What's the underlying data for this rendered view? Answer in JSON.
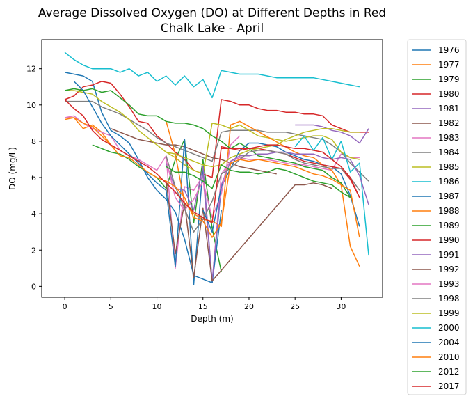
{
  "chart_data": {
    "type": "line",
    "title_line1": "Average Dissolved Oxygen (DO) at Different Depths in Red",
    "title_line2": "Chalk Lake - April",
    "xlabel": "Depth (m)",
    "ylabel": "DO (mg/L)",
    "xlim": [
      -2.5,
      34.5
    ],
    "ylim": [
      -0.6,
      13.6
    ],
    "xticks": [
      0,
      5,
      10,
      15,
      20,
      25,
      30
    ],
    "yticks": [
      0,
      2,
      4,
      6,
      8,
      10,
      12
    ],
    "grid": false,
    "legend_placement": "outside-right",
    "series": [
      {
        "name": "1976",
        "color": "#1f77b4",
        "x": [
          0,
          1,
          2,
          3,
          4,
          5,
          6,
          7,
          8,
          9,
          10,
          11,
          12,
          13,
          14,
          15,
          16,
          17,
          18,
          19,
          20,
          21,
          22,
          23,
          24,
          25,
          26,
          27,
          28,
          29,
          30,
          31,
          32
        ],
        "y": [
          11.8,
          11.7,
          11.6,
          11.3,
          9.6,
          8.6,
          8.3,
          7.9,
          7.0,
          6.0,
          5.3,
          4.8,
          4.1,
          2.6,
          0.6,
          0.4,
          0.2,
          5.5,
          6.5,
          7.5,
          7.9,
          7.9,
          7.8,
          7.7,
          7.4,
          7.2,
          7.0,
          6.9,
          6.7,
          6.6,
          6.2,
          5.0,
          3.3
        ]
      },
      {
        "name": "1977",
        "color": "#ff7f0e",
        "x": [
          0,
          1,
          2,
          3,
          4,
          5,
          6,
          7
        ],
        "y": [
          9.3,
          9.3,
          8.7,
          8.9,
          8.5,
          7.8,
          7.5,
          7.2
        ]
      },
      {
        "name": "1979",
        "color": "#2ca02c",
        "x": [
          3,
          4,
          5,
          6,
          7,
          8,
          9,
          10,
          11,
          12,
          13,
          14,
          15,
          16,
          17
        ],
        "y": [
          7.8,
          7.6,
          7.4,
          7.3,
          7.0,
          6.6,
          6.3,
          6.0,
          5.4,
          7.0,
          8.1,
          3.5,
          7.0,
          3.2,
          0.8
        ]
      },
      {
        "name": "1980",
        "color": "#d62728",
        "x": [
          0,
          1,
          2,
          3,
          4,
          5,
          6,
          7,
          8,
          9,
          10,
          11,
          12,
          13,
          14,
          15,
          16,
          17,
          18,
          19,
          20,
          21,
          22,
          23,
          24,
          25,
          26,
          27,
          28,
          29,
          30,
          31,
          32,
          33
        ],
        "y": [
          10.3,
          10.5,
          11.0,
          11.1,
          11.3,
          11.2,
          10.6,
          9.9,
          9.1,
          9.0,
          8.3,
          7.9,
          7.4,
          7.0,
          6.4,
          6.2,
          6.0,
          10.3,
          10.2,
          10.0,
          10.0,
          9.8,
          9.7,
          9.7,
          9.6,
          9.6,
          9.5,
          9.5,
          9.4,
          8.9,
          8.7,
          8.5,
          8.5,
          8.5
        ]
      },
      {
        "name": "1981",
        "color": "#9467bd",
        "x": [
          25,
          26,
          27,
          28,
          29,
          30,
          31,
          32,
          33
        ],
        "y": [
          8.9,
          8.9,
          8.9,
          8.8,
          8.6,
          8.5,
          8.3,
          7.9,
          8.7
        ]
      },
      {
        "name": "1982",
        "color": "#8c564b",
        "x": [
          5,
          6,
          7,
          8,
          9,
          10,
          11,
          12,
          13,
          14,
          15,
          16,
          17,
          18,
          19,
          20,
          21,
          22,
          23
        ],
        "y": [
          8.7,
          8.5,
          8.3,
          8.1,
          8.0,
          7.9,
          7.8,
          7.8,
          7.7,
          7.5,
          7.3,
          7.1,
          7.0,
          6.8,
          6.6,
          6.5,
          6.4,
          6.3,
          6.2
        ]
      },
      {
        "name": "1983",
        "color": "#e377c2",
        "x": [
          0,
          1,
          2,
          3,
          4,
          5,
          6,
          7,
          8,
          9,
          10,
          11,
          12,
          13,
          14,
          15,
          16,
          17,
          18,
          19,
          20,
          21,
          22,
          23,
          24,
          25,
          26,
          27,
          28,
          29,
          30,
          31,
          32
        ],
        "y": [
          9.3,
          9.4,
          9.0,
          8.7,
          8.5,
          8.3,
          7.5,
          7.2,
          7.0,
          6.7,
          6.4,
          7.2,
          1.0,
          5.5,
          5.3,
          6.1,
          0.2,
          6.2,
          6.9,
          7.1,
          7.0,
          7.0,
          7.0,
          6.9,
          6.8,
          6.7,
          6.7,
          6.6,
          6.5,
          6.4,
          7.3,
          7.1,
          7.1
        ]
      },
      {
        "name": "1984",
        "color": "#7f7f7f",
        "x": [
          0,
          1,
          2,
          3,
          4,
          5,
          6,
          7,
          8,
          9,
          10,
          11,
          12,
          13,
          14,
          15,
          16,
          17,
          18,
          19,
          20,
          21,
          22,
          23,
          24,
          25,
          26,
          27,
          28,
          29,
          30,
          31,
          32,
          33
        ],
        "y": [
          10.2,
          10.2,
          10.2,
          10.2,
          9.9,
          9.7,
          9.5,
          9.2,
          8.9,
          8.6,
          8.2,
          7.9,
          7.7,
          7.5,
          7.3,
          7.1,
          6.9,
          8.5,
          8.6,
          8.6,
          8.6,
          8.6,
          8.5,
          8.5,
          8.5,
          8.4,
          8.3,
          8.2,
          8.1,
          7.8,
          7.4,
          6.8,
          6.3,
          5.8
        ]
      },
      {
        "name": "1985",
        "color": "#bcbd22",
        "x": [
          0,
          1,
          2,
          3,
          4,
          5,
          6,
          7,
          8,
          9,
          10,
          11,
          12,
          13,
          14,
          15,
          16,
          17,
          18,
          19,
          20,
          21,
          22,
          23,
          24,
          25,
          26,
          27,
          28,
          29,
          30,
          31,
          32
        ],
        "y": [
          10.8,
          10.8,
          10.7,
          10.6,
          10.2,
          9.9,
          9.6,
          9.2,
          8.6,
          8.2,
          7.8,
          7.4,
          7.1,
          6.7,
          6.4,
          6.2,
          9.0,
          8.9,
          8.7,
          8.9,
          8.6,
          8.3,
          8.2,
          8.1,
          8.0,
          8.1,
          8.2,
          8.3,
          8.3,
          8.1,
          7.4,
          7.1,
          7.0
        ]
      },
      {
        "name": "1986",
        "color": "#17becf",
        "x": [
          25,
          26,
          27,
          28,
          29,
          30,
          31,
          32,
          33
        ],
        "y": [
          7.7,
          8.3,
          7.5,
          8.2,
          7.0,
          8.0,
          6.3,
          6.8,
          1.7
        ]
      },
      {
        "name": "1987",
        "color": "#1f77b4",
        "x": [
          1,
          2,
          3,
          4,
          5,
          6,
          7,
          8,
          9,
          10,
          11,
          12,
          13,
          14,
          15,
          16,
          17
        ],
        "y": [
          11.3,
          10.8,
          9.9,
          9.0,
          8.3,
          7.8,
          7.3,
          6.8,
          6.2,
          5.7,
          5.3,
          1.1,
          8.1,
          0.1,
          6.6,
          0.2,
          4.2
        ]
      },
      {
        "name": "1988",
        "color": "#ff7f0e",
        "x": [
          11,
          12,
          13,
          14,
          15,
          16,
          17,
          18,
          19,
          25,
          26,
          27,
          28,
          29,
          30,
          31,
          32
        ],
        "y": [
          9.1,
          7.3,
          4.6,
          4.0,
          3.7,
          3.6,
          3.3,
          8.9,
          9.1,
          7.4,
          7.2,
          7.1,
          6.7,
          6.4,
          5.6,
          2.2,
          1.1
        ]
      },
      {
        "name": "1989",
        "color": "#2ca02c",
        "x": [
          0,
          1,
          2,
          3,
          4,
          5,
          6,
          7,
          8,
          9,
          10,
          11,
          12,
          13,
          14,
          15,
          16,
          17,
          18,
          19,
          20,
          21,
          22,
          23,
          24,
          25,
          26,
          27,
          28,
          29,
          30,
          31
        ],
        "y": [
          10.8,
          10.9,
          10.8,
          10.9,
          10.7,
          10.8,
          10.4,
          10.0,
          9.5,
          9.4,
          9.4,
          9.1,
          9.0,
          9.0,
          8.9,
          8.7,
          8.3,
          8.0,
          7.6,
          7.9,
          7.6,
          7.2,
          7.1,
          7.0,
          6.9,
          6.8,
          6.6,
          6.5,
          6.4,
          6.0,
          5.7,
          4.9
        ]
      },
      {
        "name": "1990",
        "color": "#d62728",
        "x": [
          17,
          18,
          19,
          20,
          21,
          22,
          23,
          24,
          25,
          26,
          27,
          28,
          29,
          30,
          31,
          32
        ],
        "y": [
          7.6,
          7.6,
          7.6,
          7.6,
          7.6,
          7.5,
          7.4,
          7.3,
          7.1,
          6.9,
          6.8,
          6.7,
          6.6,
          6.5,
          5.9,
          4.9
        ]
      },
      {
        "name": "1991",
        "color": "#9467bd",
        "x": [
          11,
          12,
          13,
          14,
          15,
          16,
          17,
          18,
          19,
          20,
          21,
          22,
          23,
          24,
          25,
          26,
          27,
          28,
          29,
          30,
          31,
          32,
          33
        ],
        "y": [
          6.8,
          5.4,
          5.3,
          4.2,
          6.6,
          0.3,
          5.6,
          6.9,
          7.2,
          7.2,
          7.3,
          7.3,
          7.4,
          7.4,
          7.3,
          7.3,
          7.3,
          7.1,
          7.0,
          7.1,
          7.0,
          6.1,
          4.5
        ]
      },
      {
        "name": "1992",
        "color": "#8c564b",
        "x": [
          11,
          12,
          13,
          14,
          15,
          16,
          25,
          26,
          27,
          28,
          29
        ],
        "y": [
          5.8,
          1.8,
          4.6,
          0.5,
          4.3,
          0.3,
          5.6,
          5.6,
          5.7,
          5.6,
          5.4
        ]
      },
      {
        "name": "1993",
        "color": "#e377c2",
        "x": [
          11,
          12,
          13,
          14,
          15,
          16,
          17,
          18,
          19
        ],
        "y": [
          7.0,
          4.9,
          4.2,
          4.8,
          5.8,
          3.8,
          5.1,
          7.8,
          8.3
        ]
      },
      {
        "name": "1998",
        "color": "#7f7f7f",
        "x": [
          11,
          12,
          13,
          14,
          15,
          16,
          17,
          18,
          19,
          20,
          21,
          22,
          23,
          24,
          25,
          26,
          27,
          28,
          29,
          30,
          31,
          32
        ],
        "y": [
          7.2,
          5.5,
          4.3,
          3.0,
          3.7,
          4.7,
          6.2,
          6.5,
          7.0,
          7.4,
          7.5,
          7.5,
          7.4,
          7.3,
          7.0,
          6.8,
          6.7,
          6.6,
          6.5,
          6.5,
          6.0,
          5.3
        ]
      },
      {
        "name": "1999",
        "color": "#bcbd22",
        "x": [
          11,
          12,
          13,
          14,
          15,
          16,
          17,
          18,
          19,
          20,
          21,
          22,
          23,
          24,
          25,
          26,
          27,
          28,
          29,
          30,
          31,
          32
        ],
        "y": [
          7.4,
          7.3,
          7.1,
          6.9,
          6.7,
          6.6,
          6.7,
          7.1,
          7.3,
          7.5,
          7.6,
          7.7,
          7.8,
          8.1,
          8.3,
          8.5,
          8.6,
          8.7,
          8.7,
          8.6,
          8.5,
          8.5
        ]
      },
      {
        "name": "2000",
        "color": "#17becf",
        "x": [
          0,
          1,
          2,
          3,
          4,
          5,
          6,
          7,
          8,
          9,
          10,
          11,
          12,
          13,
          14,
          15,
          16,
          17,
          18,
          19,
          20,
          21,
          22,
          23,
          24,
          25,
          26,
          27,
          28,
          29,
          30,
          31,
          32
        ],
        "y": [
          12.9,
          12.5,
          12.2,
          12.0,
          12.0,
          12.0,
          11.8,
          12.0,
          11.6,
          11.8,
          11.3,
          11.6,
          11.1,
          11.6,
          11.0,
          11.4,
          10.4,
          11.9,
          11.8,
          11.7,
          11.7,
          11.7,
          11.6,
          11.5,
          11.5,
          11.5,
          11.5,
          11.5,
          11.4,
          11.3,
          11.2,
          11.1,
          11.0
        ]
      },
      {
        "name": "2004",
        "color": "#1f77b4",
        "x": [
          15,
          16,
          17
        ],
        "y": [
          4.2,
          3.0,
          5.5
        ]
      },
      {
        "name": "2010",
        "color": "#ff7f0e",
        "x": [
          0,
          1,
          2,
          3,
          4,
          5,
          6,
          7,
          8,
          9,
          10,
          11,
          12,
          13,
          14,
          15,
          16,
          17,
          18,
          19,
          20,
          21,
          22,
          23,
          24,
          25,
          26,
          27,
          28,
          29,
          30,
          31,
          32
        ],
        "y": [
          9.2,
          9.3,
          9.0,
          8.8,
          8.3,
          7.8,
          7.2,
          7.1,
          6.7,
          6.3,
          6.0,
          5.8,
          5.5,
          4.9,
          3.8,
          3.6,
          2.7,
          3.5,
          6.8,
          7.0,
          6.9,
          7.0,
          6.9,
          6.8,
          6.7,
          6.6,
          6.4,
          6.2,
          6.1,
          5.9,
          5.6,
          5.3,
          2.7
        ]
      },
      {
        "name": "2012",
        "color": "#2ca02c",
        "x": [
          11,
          12,
          13,
          14,
          15,
          16,
          17,
          18,
          19,
          20,
          21,
          22,
          23,
          24,
          25,
          26,
          27,
          28,
          29,
          30,
          31
        ],
        "y": [
          6.6,
          6.3,
          6.3,
          6.1,
          5.8,
          5.4,
          6.7,
          6.4,
          6.3,
          6.3,
          6.2,
          6.3,
          6.5,
          6.4,
          6.2,
          6.0,
          5.8,
          5.7,
          5.6,
          5.2,
          4.9
        ]
      },
      {
        "name": "2017",
        "color": "#d62728",
        "x": [
          0,
          1,
          2,
          3,
          4,
          5,
          6,
          7,
          8,
          9,
          10,
          11,
          12,
          13,
          14,
          15,
          16,
          17,
          18,
          19,
          20,
          21,
          22,
          23,
          24,
          25,
          26,
          27,
          28,
          29,
          30,
          31,
          32
        ],
        "y": [
          10.3,
          9.8,
          9.4,
          8.6,
          8.1,
          7.8,
          7.5,
          7.2,
          6.9,
          6.6,
          6.2,
          5.7,
          5.2,
          4.6,
          4.1,
          3.8,
          3.5,
          7.7,
          7.6,
          7.5,
          7.6,
          7.7,
          7.8,
          7.8,
          7.7,
          7.6,
          7.6,
          7.5,
          7.4,
          7.0,
          6.6,
          6.0,
          4.9
        ]
      }
    ]
  }
}
